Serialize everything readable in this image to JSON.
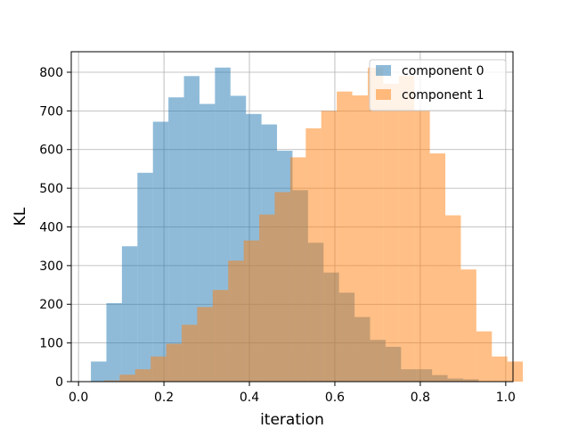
{
  "chart_data": {
    "type": "bar",
    "subtype": "histogram",
    "title": "",
    "xlabel": "iteration",
    "ylabel": "KL",
    "xlim": [
      -0.017,
      1.017
    ],
    "ylim": [
      0,
      853
    ],
    "xticks": [
      0.0,
      0.2,
      0.4,
      0.6,
      0.8,
      1.0
    ],
    "xtick_labels": [
      "0.0",
      "0.2",
      "0.4",
      "0.6",
      "0.8",
      "1.0"
    ],
    "yticks": [
      0,
      100,
      200,
      300,
      400,
      500,
      600,
      700,
      800
    ],
    "ytick_labels": [
      "0",
      "100",
      "200",
      "300",
      "400",
      "500",
      "600",
      "700",
      "800"
    ],
    "grid": true,
    "legend_position": "top-right",
    "series": [
      {
        "name": "component 0",
        "color": "#1f77b4",
        "alpha": 0.5,
        "bin_start": 0.029,
        "bin_width": 0.0363,
        "values": [
          52,
          203,
          350,
          540,
          672,
          735,
          790,
          718,
          812,
          739,
          692,
          665,
          597,
          495,
          359,
          282,
          230,
          167,
          108,
          90,
          32,
          32,
          17,
          8,
          6
        ]
      },
      {
        "name": "component 1",
        "color": "#ff7f0e",
        "alpha": 0.5,
        "bin_start": 0.06,
        "bin_width": 0.0363,
        "values": [
          3,
          18,
          32,
          65,
          98,
          147,
          193,
          237,
          313,
          365,
          432,
          490,
          580,
          655,
          700,
          750,
          740,
          812,
          770,
          790,
          700,
          590,
          430,
          290,
          130,
          65,
          52
        ]
      }
    ]
  }
}
